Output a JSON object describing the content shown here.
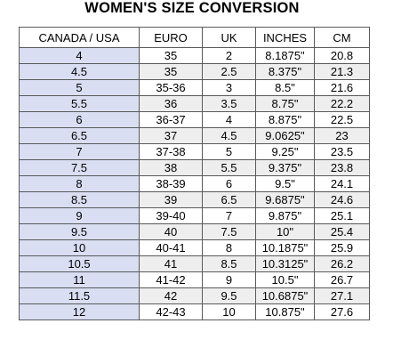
{
  "title": "WOMEN'S SIZE CONVERSION",
  "colors": {
    "first_column_bg": "#d9def2",
    "alt_row_bg": "#eeeeee",
    "border": "#5a5a5a"
  },
  "table": {
    "headers": [
      "CANADA / USA",
      "EURO",
      "UK",
      "INCHES",
      "CM"
    ],
    "rows": [
      [
        "4",
        "35",
        "2",
        "8.1875\"",
        "20.8"
      ],
      [
        "4.5",
        "35",
        "2.5",
        "8.375\"",
        "21.3"
      ],
      [
        "5",
        "35-36",
        "3",
        "8.5\"",
        "21.6"
      ],
      [
        "5.5",
        "36",
        "3.5",
        "8.75\"",
        "22.2"
      ],
      [
        "6",
        "36-37",
        "4",
        "8.875\"",
        "22.5"
      ],
      [
        "6.5",
        "37",
        "4.5",
        "9.0625\"",
        "23"
      ],
      [
        "7",
        "37-38",
        "5",
        "9.25\"",
        "23.5"
      ],
      [
        "7.5",
        "38",
        "5.5",
        "9.375\"",
        "23.8"
      ],
      [
        "8",
        "38-39",
        "6",
        "9.5\"",
        "24.1"
      ],
      [
        "8.5",
        "39",
        "6.5",
        "9.6875\"",
        "24.6"
      ],
      [
        "9",
        "39-40",
        "7",
        "9.875\"",
        "25.1"
      ],
      [
        "9.5",
        "40",
        "7.5",
        "10\"",
        "25.4"
      ],
      [
        "10",
        "40-41",
        "8",
        "10.1875\"",
        "25.9"
      ],
      [
        "10.5",
        "41",
        "8.5",
        "10.3125\"",
        "26.2"
      ],
      [
        "11",
        "41-42",
        "9",
        "10.5\"",
        "26.7"
      ],
      [
        "11.5",
        "42",
        "9.5",
        "10.6875\"",
        "27.1"
      ],
      [
        "12",
        "42-43",
        "10",
        "10.875\"",
        "27.6"
      ]
    ]
  }
}
